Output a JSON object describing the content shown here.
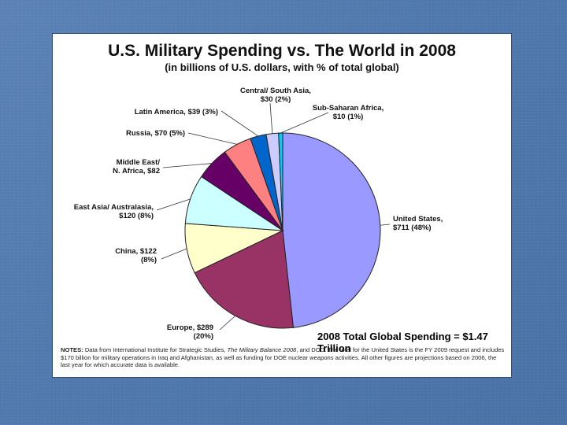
{
  "chart_data": {
    "type": "pie",
    "title": "U.S. Military Spending vs. The World in 2008",
    "subtitle": "(in billions of U.S. dollars, with % of total global)",
    "slices": [
      {
        "name": "United States",
        "value": 711,
        "pct": 48,
        "label_line1": "United States,",
        "label_line2": "$711 (48%)",
        "color": "#9999ff"
      },
      {
        "name": "Europe",
        "value": 289,
        "pct": 20,
        "label_line1": "Europe, $289",
        "label_line2": "(20%)",
        "color": "#993366"
      },
      {
        "name": "China",
        "value": 122,
        "pct": 8,
        "label_line1": "China, $122",
        "label_line2": "(8%)",
        "color": "#ffffcc"
      },
      {
        "name": "East Asia/ Australasia",
        "value": 120,
        "pct": 8,
        "label_line1": "East Asia/ Australasia,",
        "label_line2": "$120 (8%)",
        "color": "#ccffff"
      },
      {
        "name": "Middle East/ N. Africa",
        "value": 82,
        "pct": 6,
        "label_line1": "Middle East/",
        "label_line2": "N. Africa, $82",
        "color": "#660066"
      },
      {
        "name": "Russia",
        "value": 70,
        "pct": 5,
        "label_line1": "Russia, $70 (5%)",
        "label_line2": "",
        "color": "#ff8080"
      },
      {
        "name": "Latin America",
        "value": 39,
        "pct": 3,
        "label_line1": "Latin America, $39 (3%)",
        "label_line2": "",
        "color": "#0066cc"
      },
      {
        "name": "Central/ South Asia",
        "value": 30,
        "pct": 2,
        "label_line1": "Central/ South Asia,",
        "label_line2": "$30 (2%)",
        "color": "#ccccff"
      },
      {
        "name": "Sub-Saharan Africa",
        "value": 10,
        "pct": 1,
        "label_line1": "Sub-Saharan Africa,",
        "label_line2": "$10 (1%)",
        "color": "#00ccff"
      }
    ],
    "total_label": "2008 Total Global Spending = $1.47 Trillion"
  },
  "notes": {
    "label": "NOTES:",
    "text_1": " Data from International Institute for Strategic Studies, ",
    "source_title": "The Military Balance 2008",
    "text_2": ", and DOD. The total for the United States is the FY 2009 request and includes $170 billion for military operations in Iraq and Afghanistan, as well as funding for DOE nuclear weapons activities. All other figures are projections based on 2006, the last year for which accurate data is available."
  }
}
